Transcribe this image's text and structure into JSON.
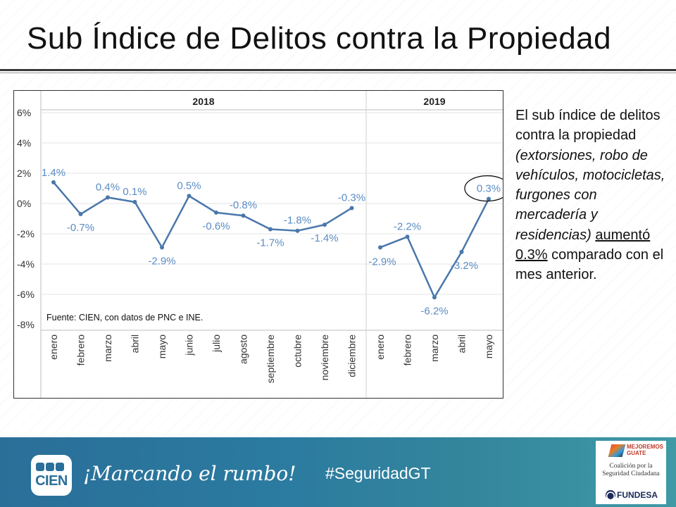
{
  "slide": {
    "title": "Sub Índice de Delitos contra la Propiedad"
  },
  "description": {
    "part1": "El sub índice de delitos contra la propiedad ",
    "part2_italic": "(extorsiones, robo de vehículos, motocicletas, furgones con mercadería y residencias)",
    "part3_underlined": "aumentó 0.3%",
    "part4": " comparado con el mes anterior."
  },
  "footer": {
    "logo_text": "CIEN",
    "slogan": "¡Marcando el rumbo!",
    "hashtag": "#SeguridadGT",
    "partner_mejoremos": "MEJOREMOS GUATE",
    "partner_coalicion": "Coalición por la Seguridad Ciudadana",
    "partner_fundesa": "FUNDESA"
  },
  "colors": {
    "line": "#4a78ab",
    "label": "#5b8cc4",
    "grid": "#e3e3e3",
    "divider": "#cfcfcf"
  },
  "chart_data": {
    "type": "line",
    "title": "",
    "source": "Fuente: CIEN, con datos de PNC e INE.",
    "y_ticks": [
      "6%",
      "4%",
      "2%",
      "0%",
      "-2%",
      "-4%",
      "-6%",
      "-8%"
    ],
    "y_tick_values": [
      6,
      4,
      2,
      0,
      -2,
      -4,
      -6,
      -8
    ],
    "ylim": [
      -8,
      6
    ],
    "panels": [
      {
        "year": "2018",
        "categories": [
          "enero",
          "febrero",
          "marzo",
          "abril",
          "mayo",
          "junio",
          "julio",
          "agosto",
          "septiembre",
          "octubre",
          "noviembre",
          "diciembre"
        ],
        "values": [
          1.4,
          -0.7,
          0.4,
          0.1,
          -2.9,
          0.5,
          -0.6,
          -0.8,
          -1.7,
          -1.8,
          -1.4,
          -0.3
        ],
        "labels": [
          "1.4%",
          "-0.7%",
          "0.4%",
          "0.1%",
          "-2.9%",
          "0.5%",
          "-0.6%",
          "-0.8%",
          "-1.7%",
          "-1.8%",
          "-1.4%",
          "-0.3%"
        ]
      },
      {
        "year": "2019",
        "categories": [
          "enero",
          "febrero",
          "marzo",
          "abril",
          "mayo"
        ],
        "values": [
          -2.9,
          -2.2,
          -6.2,
          -3.2,
          0.3
        ],
        "labels": [
          "-2.9%",
          "-2.2%",
          "-6.2%",
          "-3.2%",
          "0.3%"
        ],
        "highlight_index": 4
      }
    ]
  }
}
